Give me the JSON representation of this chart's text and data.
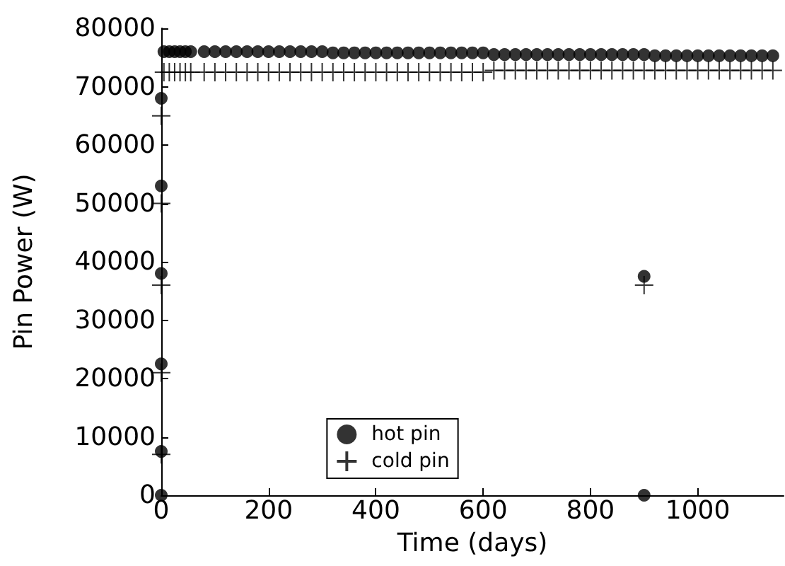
{
  "chart_data": {
    "type": "scatter",
    "xlabel": "Time (days)",
    "ylabel": "Pin Power (W)",
    "xlim": [
      0,
      1160
    ],
    "ylim": [
      0,
      80000
    ],
    "xticks": [
      0,
      200,
      400,
      600,
      800,
      1000
    ],
    "yticks": [
      0,
      10000,
      20000,
      30000,
      40000,
      50000,
      60000,
      70000,
      80000
    ],
    "grid": false,
    "legend": "bottom",
    "series": [
      {
        "name": "hot pin",
        "color": "#000000",
        "marker": "circle",
        "x": [
          5,
          15,
          25,
          35,
          45,
          55,
          80,
          100,
          120,
          140,
          160,
          180,
          200,
          220,
          240,
          260,
          280,
          300,
          320,
          340,
          360,
          380,
          400,
          420,
          440,
          460,
          480,
          500,
          520,
          540,
          560,
          580,
          600,
          620,
          640,
          660,
          680,
          700,
          720,
          740,
          760,
          780,
          800,
          820,
          840,
          860,
          880,
          900,
          920,
          940,
          960,
          980,
          1000,
          1020,
          1040,
          1060,
          1080,
          1100,
          1120,
          1140,
          0,
          0,
          0,
          0,
          0,
          0,
          900,
          900
        ],
        "values": [
          76000,
          76000,
          76000,
          76000,
          76000,
          76000,
          76000,
          76000,
          76000,
          76000,
          76000,
          76000,
          76000,
          76000,
          76000,
          76000,
          76000,
          76000,
          75800,
          75800,
          75800,
          75800,
          75800,
          75800,
          75800,
          75800,
          75800,
          75800,
          75800,
          75800,
          75800,
          75800,
          75800,
          75500,
          75500,
          75500,
          75500,
          75500,
          75500,
          75500,
          75500,
          75500,
          75500,
          75500,
          75500,
          75500,
          75500,
          75500,
          75300,
          75300,
          75300,
          75300,
          75300,
          75300,
          75300,
          75300,
          75300,
          75300,
          75300,
          75300,
          0,
          7500,
          22500,
          38000,
          53000,
          68000,
          37500,
          0
        ]
      },
      {
        "name": "cold pin",
        "color": "#000000",
        "marker": "cross",
        "x": [
          5,
          15,
          25,
          35,
          45,
          55,
          80,
          100,
          120,
          140,
          160,
          180,
          200,
          220,
          240,
          260,
          280,
          300,
          320,
          340,
          360,
          380,
          400,
          420,
          440,
          460,
          480,
          500,
          520,
          540,
          560,
          580,
          600,
          620,
          640,
          660,
          680,
          700,
          720,
          740,
          760,
          780,
          800,
          820,
          840,
          860,
          880,
          900,
          920,
          940,
          960,
          980,
          1000,
          1020,
          1040,
          1060,
          1080,
          1100,
          1120,
          1140,
          0,
          0,
          0,
          0,
          0,
          900
        ],
        "values": [
          72500,
          72500,
          72500,
          72500,
          72500,
          72500,
          72500,
          72500,
          72500,
          72500,
          72500,
          72500,
          72500,
          72500,
          72500,
          72500,
          72500,
          72500,
          72500,
          72500,
          72500,
          72500,
          72500,
          72500,
          72500,
          72500,
          72500,
          72500,
          72500,
          72500,
          72500,
          72500,
          72500,
          72800,
          72800,
          72800,
          72800,
          72800,
          72800,
          72800,
          72800,
          72800,
          72800,
          72800,
          72800,
          72800,
          72800,
          72800,
          72800,
          72800,
          72800,
          72800,
          72800,
          72800,
          72800,
          72800,
          72800,
          72800,
          72800,
          72800,
          7000,
          21000,
          36000,
          50000,
          65000,
          36000
        ]
      }
    ]
  }
}
